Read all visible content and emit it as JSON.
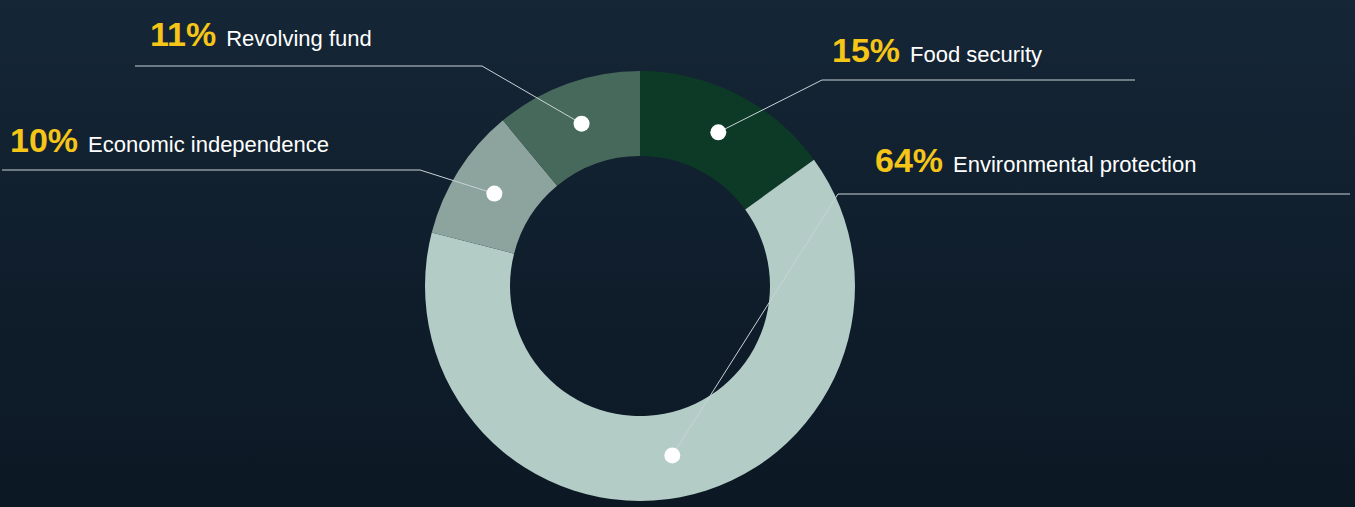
{
  "chart_data": {
    "type": "pie",
    "categories": [
      "Food security",
      "Environmental protection",
      "Economic independence",
      "Revolving fund"
    ],
    "values": [
      15,
      64,
      10,
      11
    ],
    "value_labels": [
      "15%",
      "64%",
      "10%",
      "11%"
    ],
    "colors": [
      "#0c3a26",
      "#b4ccc6",
      "#8ca49d",
      "#47695b"
    ],
    "data_labels": true
  }
}
